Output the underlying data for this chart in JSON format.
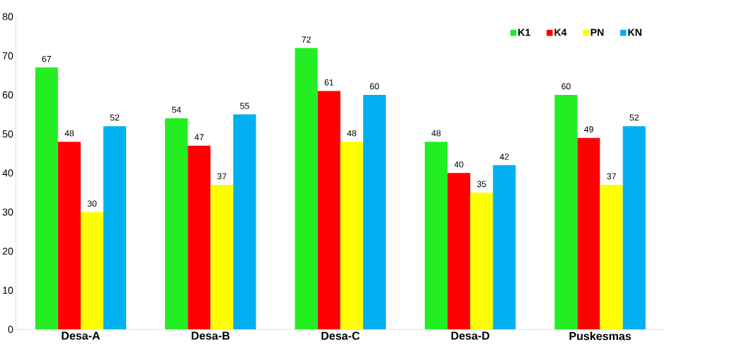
{
  "chart_data": {
    "type": "bar",
    "categories": [
      "Desa-A",
      "Desa-B",
      "Desa-C",
      "Desa-D",
      "Puskesmas"
    ],
    "series": [
      {
        "name": "K1",
        "color": "#22ee22",
        "values": [
          67,
          54,
          72,
          48,
          60
        ]
      },
      {
        "name": "K4",
        "color": "#ff0000",
        "values": [
          48,
          47,
          61,
          40,
          49
        ]
      },
      {
        "name": "PN",
        "color": "#ffff00",
        "values": [
          30,
          37,
          48,
          35,
          37
        ]
      },
      {
        "name": "KN",
        "color": "#00b0f0",
        "values": [
          52,
          55,
          60,
          42,
          52
        ]
      }
    ],
    "ylim": [
      0,
      80
    ],
    "yticks": [
      0,
      10,
      20,
      30,
      40,
      50,
      60,
      70,
      80
    ],
    "data_labels": true,
    "legend": "top right",
    "grid": false
  }
}
